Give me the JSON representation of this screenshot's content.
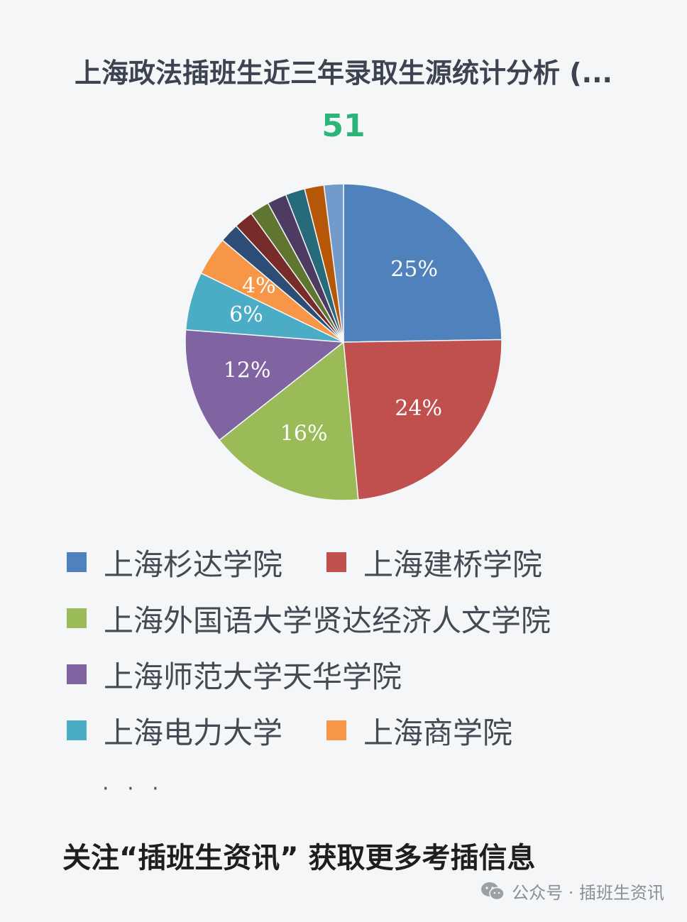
{
  "chart_data": {
    "type": "pie",
    "title": "上海政法插班生近三年录取生源统计分析 (...",
    "subtitle": "51",
    "slices": [
      {
        "name": "上海杉达学院",
        "value": 25,
        "label": "25%",
        "color": "#4f81bd"
      },
      {
        "name": "上海建桥学院",
        "value": 24,
        "label": "24%",
        "color": "#c0504d"
      },
      {
        "name": "上海外国语大学贤达经济人文学院",
        "value": 16,
        "label": "16%",
        "color": "#9bbb59"
      },
      {
        "name": "上海师范大学天华学院",
        "value": 12,
        "label": "12%",
        "color": "#8064a2"
      },
      {
        "name": "上海电力大学",
        "value": 6,
        "label": "6%",
        "color": "#4bacc6"
      },
      {
        "name": "上海商学院",
        "value": 4,
        "label": "4%",
        "color": "#f79646"
      },
      {
        "name": "",
        "value": 2,
        "label": "",
        "color": "#2c4d75"
      },
      {
        "name": "",
        "value": 2,
        "label": "",
        "color": "#772c2a"
      },
      {
        "name": "",
        "value": 2,
        "label": "",
        "color": "#5f7530"
      },
      {
        "name": "",
        "value": 2,
        "label": "",
        "color": "#4d3b62"
      },
      {
        "name": "",
        "value": 2,
        "label": "",
        "color": "#276a7c"
      },
      {
        "name": "",
        "value": 2,
        "label": "",
        "color": "#b65708"
      },
      {
        "name": "",
        "value": 2,
        "label": "",
        "color": "#729aca"
      }
    ],
    "legend": {
      "position": "bottom",
      "entries": [
        {
          "label": "上海杉达学院",
          "color": "#4f81bd"
        },
        {
          "label": "上海建桥学院",
          "color": "#c0504d"
        },
        {
          "label": "上海外国语大学贤达经济人文学院",
          "color": "#9bbb59"
        },
        {
          "label": "上海师范大学天华学院",
          "color": "#8064a2"
        },
        {
          "label": "上海电力大学",
          "color": "#4bacc6"
        },
        {
          "label": "上海商学院",
          "color": "#f79646"
        }
      ],
      "more": "· · ·"
    }
  },
  "footer_note": "关注“插班生资讯” 获取更多考插信息",
  "watermark": {
    "text": "公众号 · 插班生资讯",
    "icon": "wechat-icon"
  }
}
